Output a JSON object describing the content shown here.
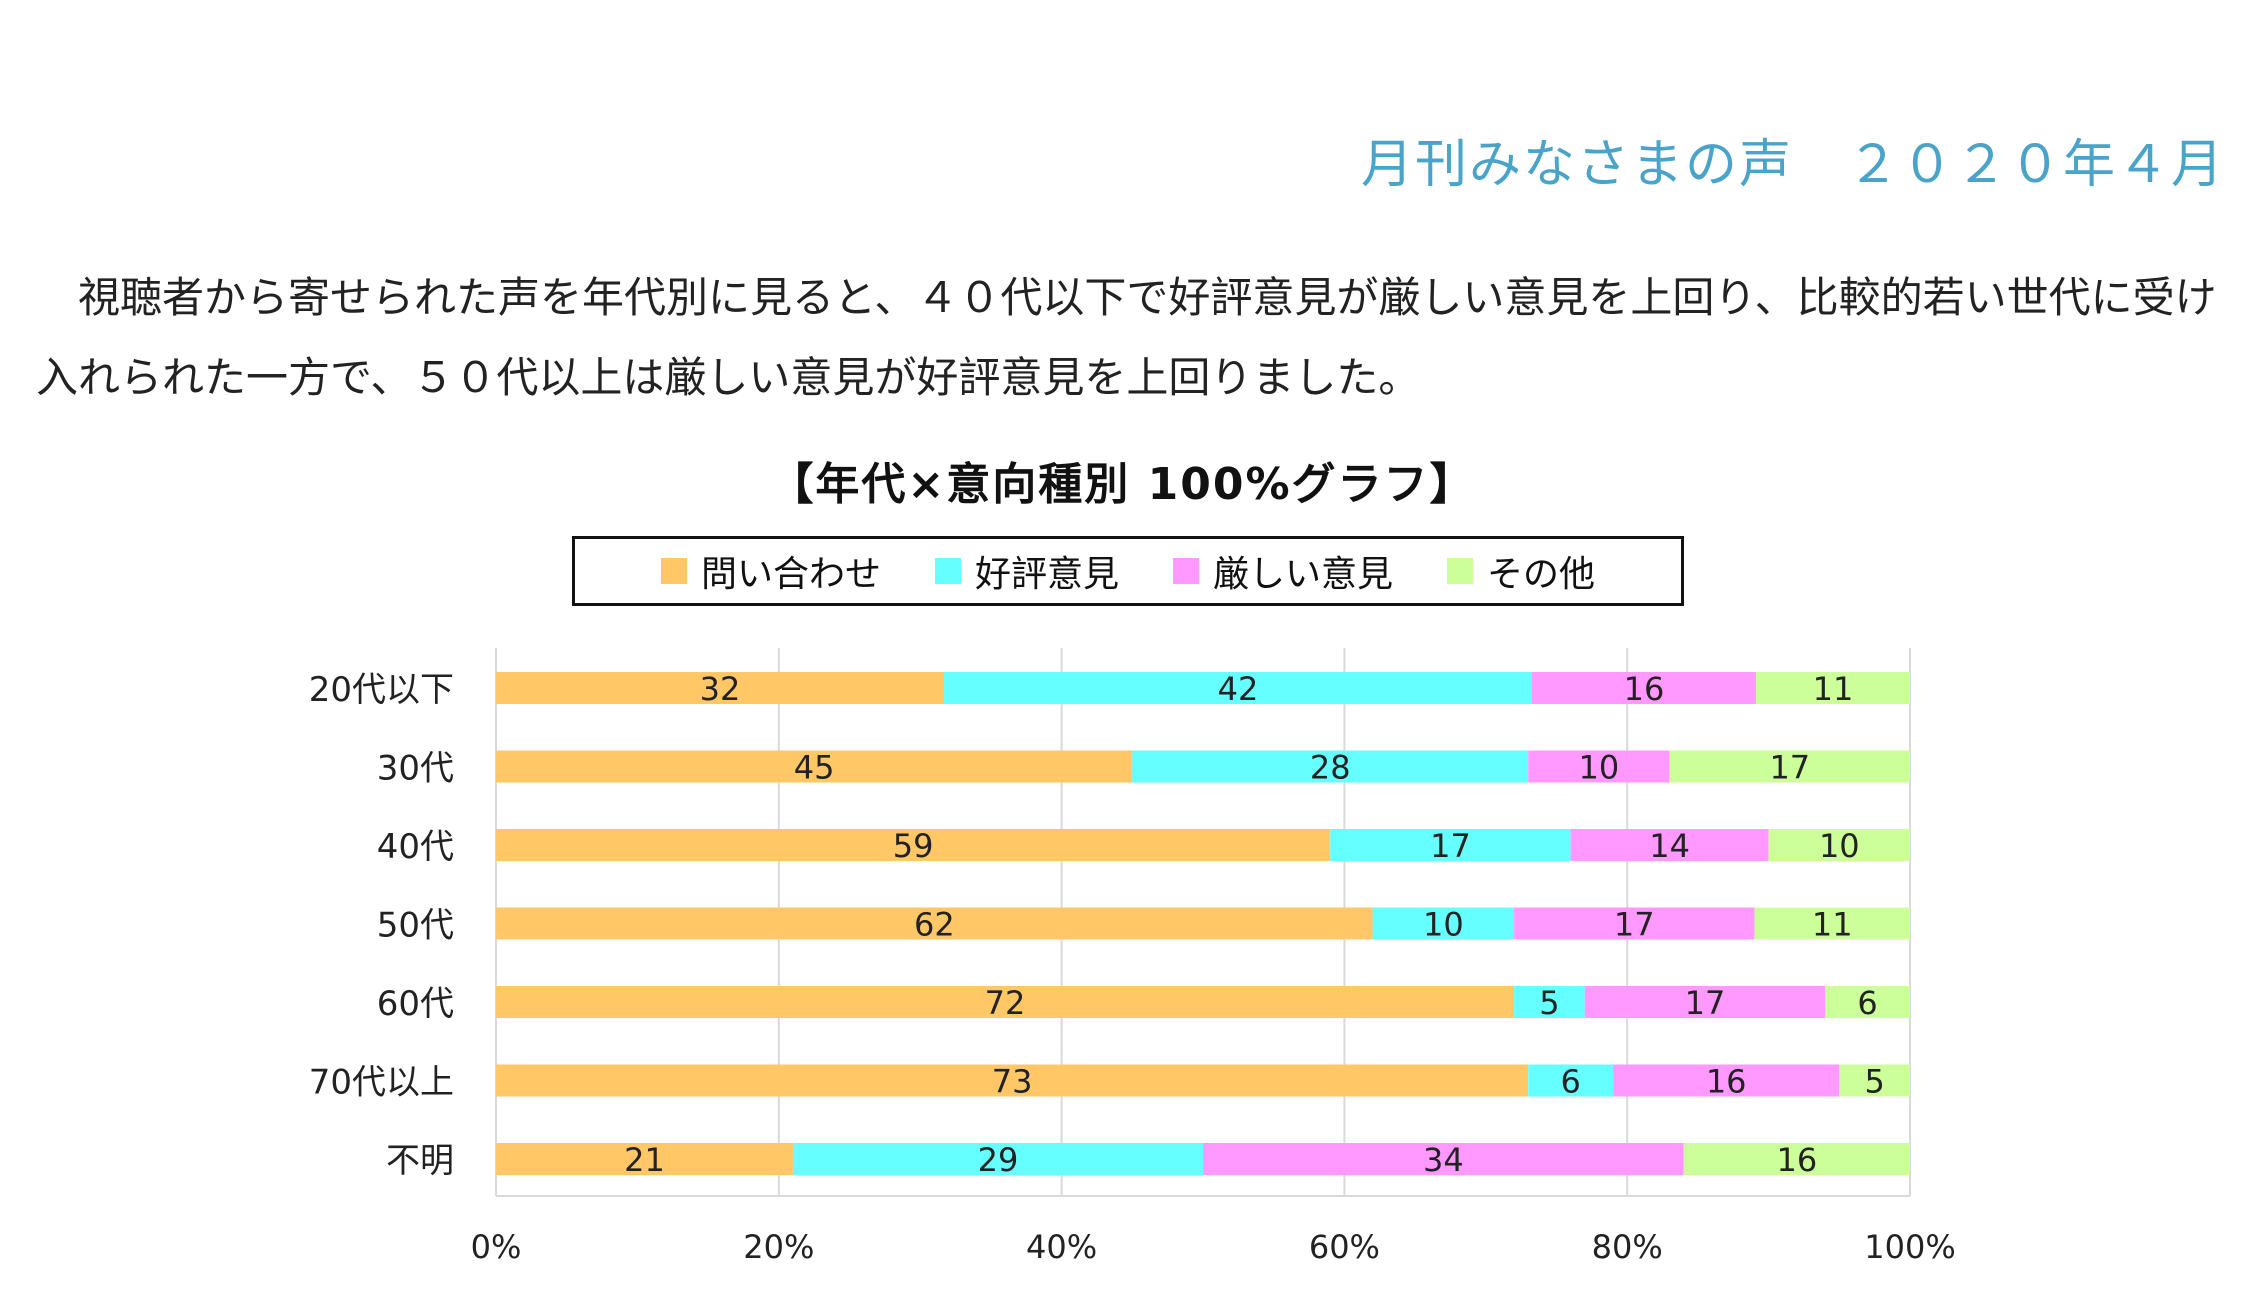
{
  "header": {
    "title": "月刊みなさまの声　２０２０年４月"
  },
  "description": "視聴者から寄せられた声を年代別に見ると、４０代以下で好評意見が厳しい意見を上回り、比較的若い世代に受け入れられた一方で、５０代以上は厳しい意見が好評意見を上回りました。",
  "chart_data": {
    "type": "bar",
    "orientation": "horizontal",
    "stacked": "percent",
    "title": "【年代×意向種別 100%グラフ】",
    "categories": [
      "20代以下",
      "30代",
      "40代",
      "50代",
      "60代",
      "70代以上",
      "不明"
    ],
    "series": [
      {
        "name": "問い合わせ",
        "color": "#ffc766",
        "values": [
          32,
          45,
          59,
          62,
          72,
          73,
          21
        ]
      },
      {
        "name": "好評意見",
        "color": "#66ffff",
        "values": [
          42,
          28,
          17,
          10,
          5,
          6,
          29
        ]
      },
      {
        "name": "厳しい意見",
        "color": "#ff99ff",
        "values": [
          16,
          10,
          14,
          17,
          17,
          16,
          34
        ]
      },
      {
        "name": "その他",
        "color": "#ccff99",
        "values": [
          11,
          17,
          10,
          11,
          6,
          5,
          16
        ]
      }
    ],
    "x_ticks": [
      "0%",
      "20%",
      "40%",
      "60%",
      "80%",
      "100%"
    ],
    "xlim": [
      0,
      100
    ],
    "grid": true,
    "legend_position": "top"
  }
}
